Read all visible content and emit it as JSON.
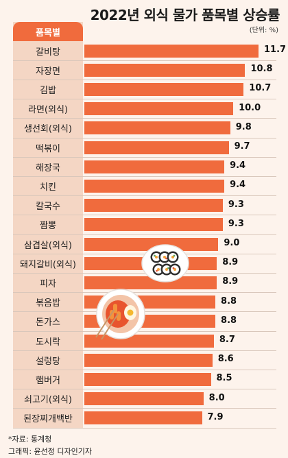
{
  "header": {
    "title": "2022년 외식 물가 품목별 상승률",
    "unit": "(단위: %)"
  },
  "table": {
    "column_header": "품목별"
  },
  "chart_data": {
    "type": "bar",
    "orientation": "horizontal",
    "title": "2022년 외식 물가 품목별 상승률",
    "unit": "%",
    "xlim": [
      0,
      11.7
    ],
    "categories": [
      "갈비탕",
      "자장면",
      "김밥",
      "라면(외식)",
      "생선회(외식)",
      "떡볶이",
      "해장국",
      "치킨",
      "칼국수",
      "짬뽕",
      "삼겹살(외식)",
      "돼지갈비(외식)",
      "피자",
      "볶음밥",
      "돈가스",
      "도시락",
      "설렁탕",
      "햄버거",
      "쇠고기(외식)",
      "된장찌개백반"
    ],
    "values": [
      11.7,
      10.8,
      10.7,
      10.0,
      9.8,
      9.7,
      9.4,
      9.4,
      9.3,
      9.3,
      9.0,
      8.9,
      8.9,
      8.8,
      8.8,
      8.7,
      8.6,
      8.5,
      8.0,
      7.9
    ],
    "value_labels": [
      "11.7",
      "10.8",
      "10.7",
      "10.0",
      "9.8",
      "9.7",
      "9.4",
      "9.4",
      "9.3",
      "9.3",
      "9.0",
      "8.9",
      "8.9",
      "8.8",
      "8.8",
      "8.7",
      "8.6",
      "8.5",
      "8.0",
      "7.9"
    ],
    "bar_color": "#f06b3d",
    "grid": false,
    "legend": "none"
  },
  "footer": {
    "source": "*자료: 통계청",
    "credit": "그래픽: 윤선정 디자인기자"
  },
  "decorations": {
    "icons": [
      "gimbap-plate-icon",
      "tteokbokki-skewer-plate-icon"
    ]
  },
  "colors": {
    "accent": "#f06b3d",
    "background": "#fdf3ec",
    "label_column": "#f4d6c4"
  }
}
